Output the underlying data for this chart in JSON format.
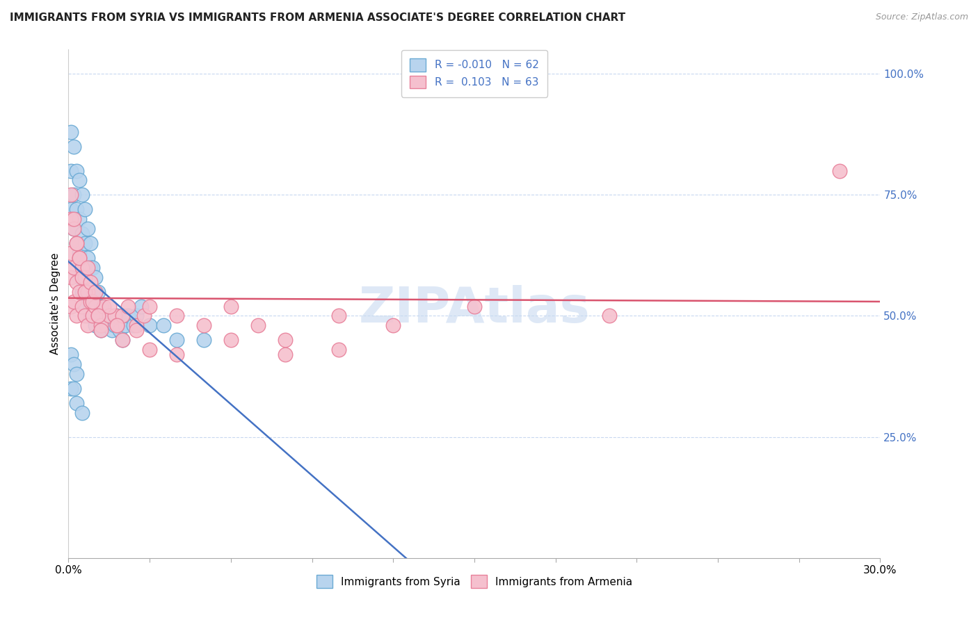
{
  "title": "IMMIGRANTS FROM SYRIA VS IMMIGRANTS FROM ARMENIA ASSOCIATE'S DEGREE CORRELATION CHART",
  "source": "Source: ZipAtlas.com",
  "ylabel": "Associate's Degree",
  "xlim": [
    0.0,
    0.3
  ],
  "ylim": [
    0.0,
    1.05
  ],
  "series1_label": "Immigrants from Syria",
  "series1_fill_color": "#b8d4ee",
  "series1_edge_color": "#6aaad4",
  "series1_R": "-0.010",
  "series1_N": "62",
  "series2_label": "Immigrants from Armenia",
  "series2_fill_color": "#f5c0ce",
  "series2_edge_color": "#e8809a",
  "series2_R": "0.103",
  "series2_N": "63",
  "trend1_color": "#4472c4",
  "trend2_color": "#d9546e",
  "grid_dash_color": "#c8d8f0",
  "y_ticks": [
    0.25,
    0.5,
    0.75,
    1.0
  ],
  "y_tick_labels": [
    "25.0%",
    "50.0%",
    "75.0%",
    "100.0%"
  ],
  "watermark_color": "#c8daf0",
  "syria_x": [
    0.001,
    0.001,
    0.001,
    0.002,
    0.002,
    0.002,
    0.003,
    0.003,
    0.003,
    0.004,
    0.004,
    0.004,
    0.004,
    0.005,
    0.005,
    0.005,
    0.005,
    0.006,
    0.006,
    0.006,
    0.006,
    0.007,
    0.007,
    0.007,
    0.007,
    0.008,
    0.008,
    0.008,
    0.009,
    0.009,
    0.01,
    0.01,
    0.01,
    0.011,
    0.011,
    0.012,
    0.012,
    0.013,
    0.014,
    0.015,
    0.016,
    0.017,
    0.018,
    0.019,
    0.02,
    0.02,
    0.021,
    0.022,
    0.024,
    0.025,
    0.03,
    0.035,
    0.04,
    0.05,
    0.001,
    0.001,
    0.002,
    0.002,
    0.003,
    0.003,
    0.005,
    0.027
  ],
  "syria_y": [
    0.88,
    0.8,
    0.72,
    0.85,
    0.75,
    0.68,
    0.8,
    0.72,
    0.65,
    0.78,
    0.7,
    0.63,
    0.58,
    0.75,
    0.67,
    0.6,
    0.55,
    0.72,
    0.65,
    0.58,
    0.52,
    0.68,
    0.62,
    0.55,
    0.5,
    0.65,
    0.6,
    0.52,
    0.6,
    0.55,
    0.58,
    0.53,
    0.48,
    0.55,
    0.5,
    0.52,
    0.47,
    0.5,
    0.48,
    0.5,
    0.47,
    0.48,
    0.5,
    0.47,
    0.5,
    0.45,
    0.48,
    0.5,
    0.48,
    0.5,
    0.48,
    0.48,
    0.45,
    0.45,
    0.42,
    0.35,
    0.4,
    0.35,
    0.38,
    0.32,
    0.3,
    0.52
  ],
  "armenia_x": [
    0.001,
    0.001,
    0.001,
    0.001,
    0.002,
    0.002,
    0.002,
    0.003,
    0.003,
    0.003,
    0.004,
    0.004,
    0.005,
    0.005,
    0.006,
    0.006,
    0.007,
    0.007,
    0.008,
    0.009,
    0.01,
    0.011,
    0.012,
    0.013,
    0.015,
    0.017,
    0.018,
    0.02,
    0.022,
    0.025,
    0.028,
    0.03,
    0.04,
    0.05,
    0.06,
    0.07,
    0.08,
    0.1,
    0.12,
    0.15,
    0.2,
    0.001,
    0.002,
    0.003,
    0.004,
    0.005,
    0.006,
    0.007,
    0.008,
    0.009,
    0.01,
    0.011,
    0.012,
    0.015,
    0.018,
    0.02,
    0.025,
    0.03,
    0.04,
    0.06,
    0.08,
    0.1,
    0.285
  ],
  "armenia_y": [
    0.7,
    0.63,
    0.58,
    0.52,
    0.68,
    0.6,
    0.53,
    0.65,
    0.57,
    0.5,
    0.62,
    0.55,
    0.6,
    0.52,
    0.58,
    0.5,
    0.55,
    0.48,
    0.53,
    0.5,
    0.52,
    0.5,
    0.48,
    0.52,
    0.5,
    0.5,
    0.48,
    0.5,
    0.52,
    0.48,
    0.5,
    0.52,
    0.5,
    0.48,
    0.52,
    0.48,
    0.45,
    0.5,
    0.48,
    0.52,
    0.5,
    0.75,
    0.7,
    0.65,
    0.62,
    0.58,
    0.55,
    0.6,
    0.57,
    0.53,
    0.55,
    0.5,
    0.47,
    0.52,
    0.48,
    0.45,
    0.47,
    0.43,
    0.42,
    0.45,
    0.42,
    0.43,
    0.8
  ]
}
